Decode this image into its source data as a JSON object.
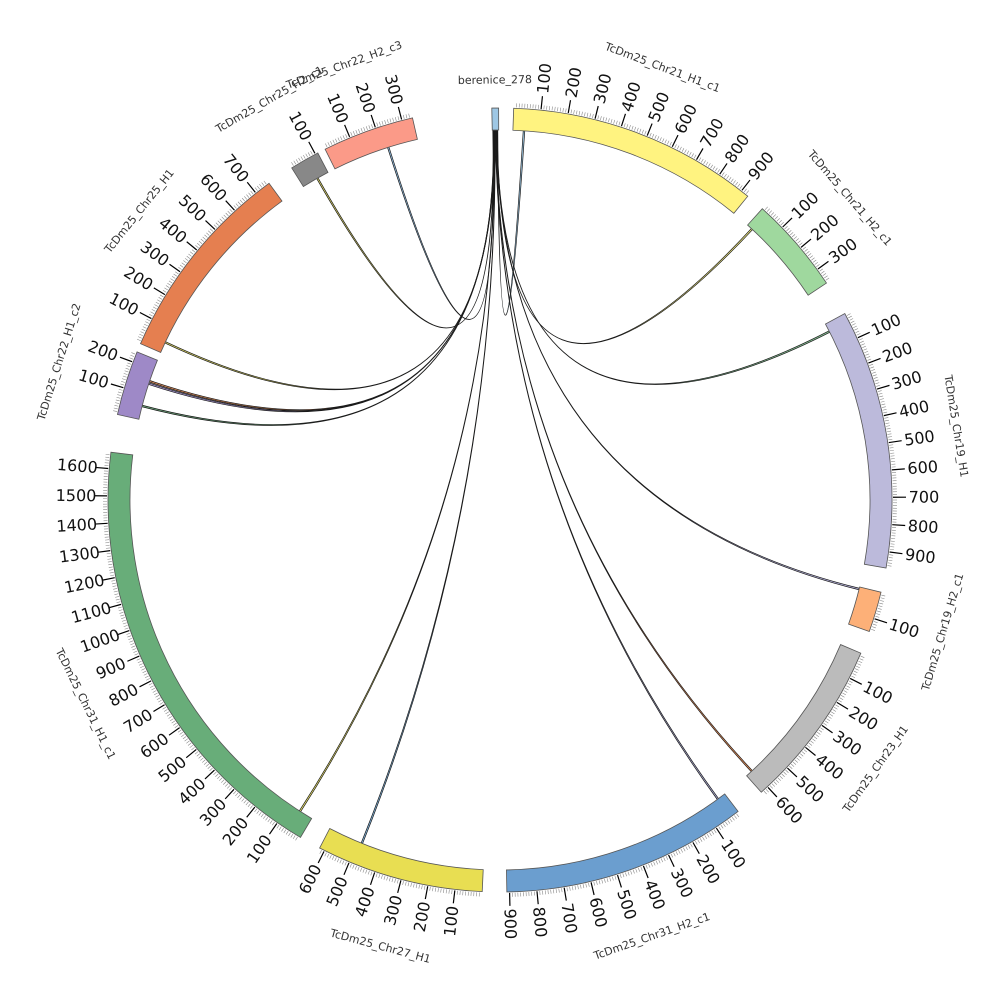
{
  "chart_data": {
    "type": "chord",
    "title": "",
    "segments": [
      {
        "name": "berenice_278",
        "length": 25,
        "color": "#9ec7e4",
        "start_deg": -1.2,
        "ticks": []
      },
      {
        "name": "TcDm25_Chr21_H1_c1",
        "length": 930,
        "color": "#fff380",
        "start_deg": 2.0,
        "ticks": [
          100,
          200,
          300,
          400,
          500,
          600,
          700,
          800,
          900
        ]
      },
      {
        "name": "TcDm25_Chr21_H2_c1",
        "length": 360,
        "color": "#9fd89e",
        "start_deg": 42.0,
        "ticks": [
          100,
          200,
          300
        ]
      },
      {
        "name": "TcDm25_Chr19_H1",
        "length": 960,
        "color": "#bcbadb",
        "start_deg": 61.6,
        "ticks": [
          100,
          200,
          300,
          400,
          500,
          600,
          700,
          800,
          900
        ]
      },
      {
        "name": "TcDm25_Chr19_H2_c1",
        "length": 150,
        "color": "#fdb078",
        "start_deg": 103.6,
        "ticks": [
          100
        ]
      },
      {
        "name": "TcDm25_Chr23_H1",
        "length": 630,
        "color": "#bbbbbb",
        "start_deg": 113.0,
        "ticks": [
          100,
          200,
          300,
          400,
          500,
          600
        ]
      },
      {
        "name": "TcDm25_Chr31_H2_c1",
        "length": 910,
        "color": "#6b9ecf",
        "start_deg": 142.6,
        "ticks": [
          100,
          200,
          300,
          400,
          500,
          600,
          700,
          800,
          900
        ]
      },
      {
        "name": "TcDm25_Chr27_H1",
        "length": 620,
        "color": "#e8de52",
        "start_deg": 182.6,
        "ticks": [
          100,
          200,
          300,
          400,
          500,
          600
        ]
      },
      {
        "name": "TcDm25_Chr31_H1_c1",
        "length": 1660,
        "color": "#68ad79",
        "start_deg": 210.6,
        "ticks": [
          100,
          200,
          300,
          400,
          500,
          600,
          700,
          800,
          900,
          1000,
          1100,
          1200,
          1300,
          1400,
          1500,
          1600
        ]
      },
      {
        "name": "TcDm25_Chr22_H1_c2",
        "length": 240,
        "color": "#9e89c7",
        "start_deg": 282.6,
        "ticks": [
          100,
          200
        ]
      },
      {
        "name": "TcDm25_Chr25_H1",
        "length": 760,
        "color": "#e57f50",
        "start_deg": 293.5,
        "ticks": [
          100,
          200,
          300,
          400,
          500,
          600,
          700
        ]
      },
      {
        "name": "TcDm25_Chr25_H2_c1",
        "length": 110,
        "color": "#888888",
        "start_deg": 327.9,
        "ticks": [
          100
        ]
      },
      {
        "name": "TcDm25_Chr22_H2_c3",
        "length": 340,
        "color": "#fb9a88",
        "start_deg": 333.5,
        "ticks": [
          100,
          200,
          300
        ]
      }
    ],
    "links": [
      {
        "from": "berenice_278",
        "from_pos": 20,
        "to": "TcDm25_Chr21_H1_c1",
        "to_pos": 40,
        "color": "#8fc3e6"
      },
      {
        "from": "berenice_278",
        "from_pos": 18,
        "to": "TcDm25_Chr21_H2_c1",
        "to_pos": 20,
        "color": "#f3ea6e"
      },
      {
        "from": "berenice_278",
        "from_pos": 16,
        "to": "TcDm25_Chr19_H1",
        "to_pos": 30,
        "color": "#6fb07e"
      },
      {
        "from": "berenice_278",
        "from_pos": 14,
        "to": "TcDm25_Chr19_H2_c1",
        "to_pos": 5,
        "color": "#a9a6d6"
      },
      {
        "from": "berenice_278",
        "from_pos": 12,
        "to": "TcDm25_Chr23_H1",
        "to_pos": 600,
        "color": "#e07a3c"
      },
      {
        "from": "berenice_278",
        "from_pos": 11,
        "to": "TcDm25_Chr31_H2_c1",
        "to_pos": 30,
        "color": "#9a9ac8"
      },
      {
        "from": "berenice_278",
        "from_pos": 9,
        "to": "TcDm25_Chr27_H1",
        "to_pos": 480,
        "color": "#6ba6d6"
      },
      {
        "from": "berenice_278",
        "from_pos": 8,
        "to": "TcDm25_Chr31_H1_c1",
        "to_pos": 50,
        "color": "#e8de52"
      },
      {
        "from": "berenice_278",
        "from_pos": 7,
        "to": "TcDm25_Chr22_H1_c2",
        "to_pos": 50,
        "color": "#5aa06c"
      },
      {
        "from": "berenice_278",
        "from_pos": 6,
        "to": "TcDm25_Chr22_H1_c2",
        "to_pos": 150,
        "color": "#e07a3c"
      },
      {
        "from": "berenice_278",
        "from_pos": 5,
        "to": "TcDm25_Chr22_H1_c2",
        "to_pos": 140,
        "color": "#8e7bc0"
      },
      {
        "from": "berenice_278",
        "from_pos": 4,
        "to": "TcDm25_Chr25_H1",
        "to_pos": 40,
        "color": "#d4cb4e"
      },
      {
        "from": "berenice_278",
        "from_pos": 3,
        "to": "TcDm25_Chr25_H2_c1",
        "to_pos": 60,
        "color": "#d4cb4e"
      },
      {
        "from": "berenice_278",
        "from_pos": 2,
        "to": "TcDm25_Chr22_H2_c3",
        "to_pos": 220,
        "color": "#7fb2dd"
      }
    ]
  }
}
